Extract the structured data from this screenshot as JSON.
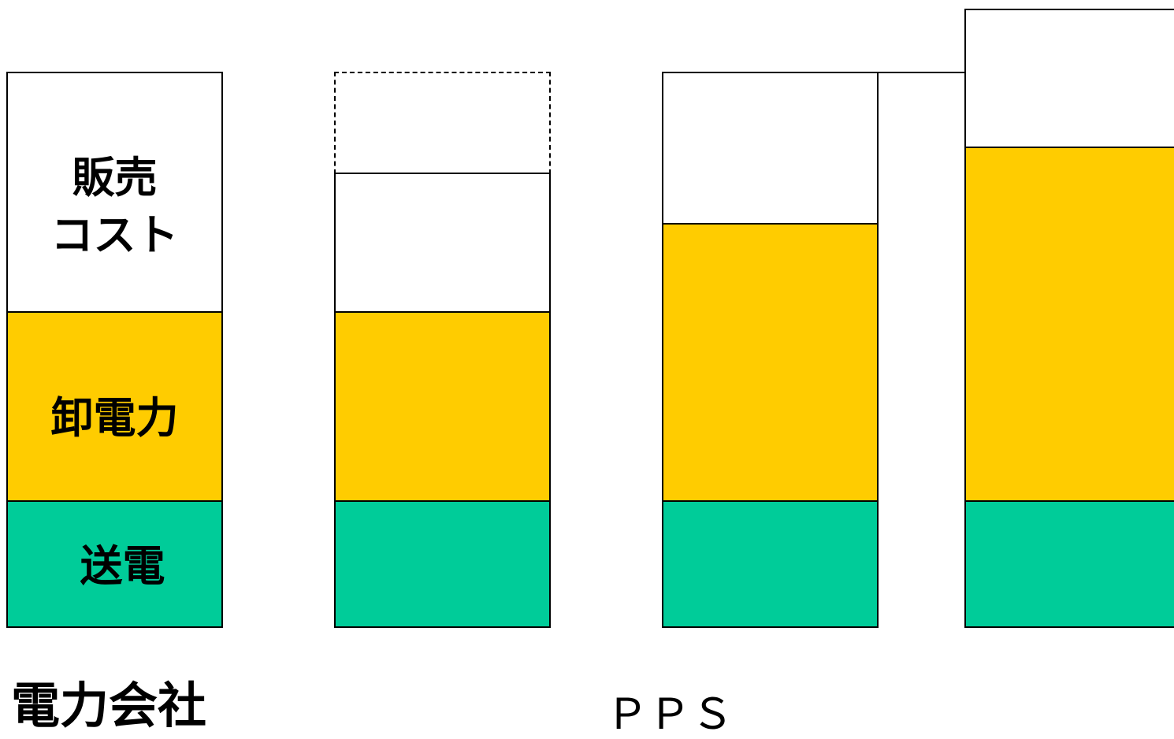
{
  "colors": {
    "transmission": "#00CC99",
    "wholesale": "#FFCC00",
    "sales": "#FFFFFF",
    "outline": "#000000"
  },
  "labels": {
    "sales_cost_line1": "販売",
    "sales_cost_line2": "コスト",
    "wholesale_power": "卸電力",
    "transmission": "送電",
    "utility": "電力会社",
    "pps": "ＰＰＳ"
  }
}
